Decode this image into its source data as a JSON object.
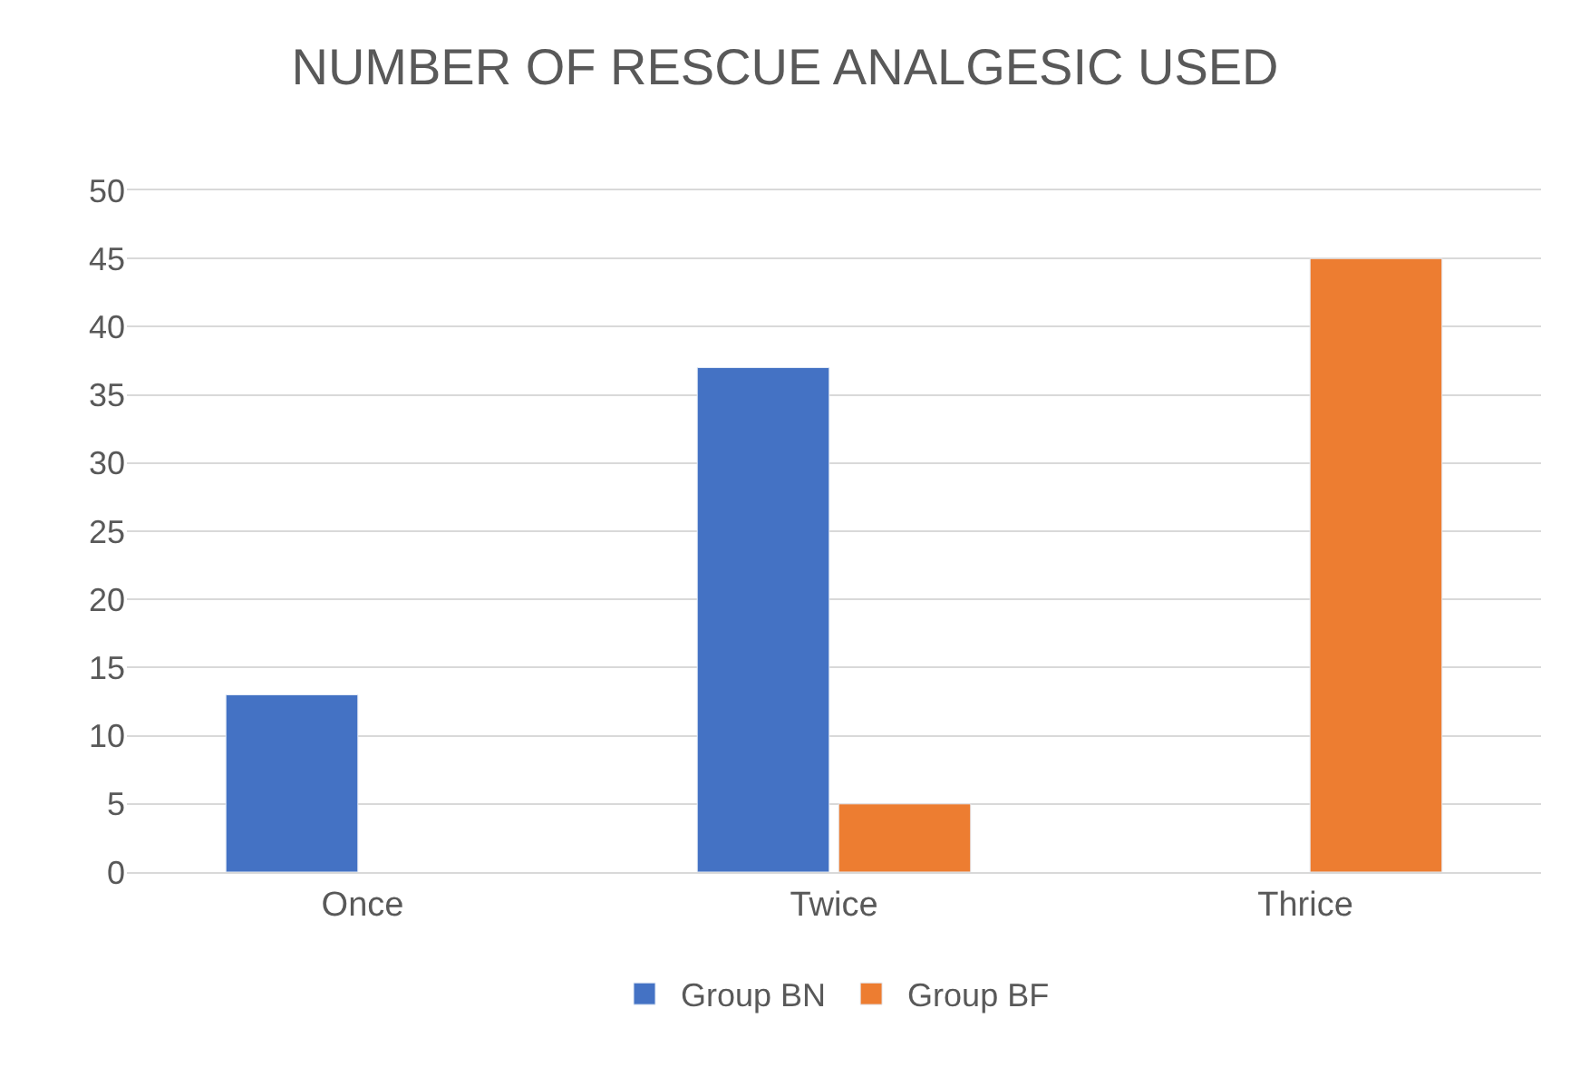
{
  "chart_data": {
    "type": "bar",
    "title": "NUMBER OF RESCUE ANALGESIC USED",
    "categories": [
      "Once",
      "Twice",
      "Thrice"
    ],
    "series": [
      {
        "name": "Group BN",
        "color": "#4472c4",
        "values": [
          13,
          37,
          null
        ]
      },
      {
        "name": "Group BF",
        "color": "#ed7d31",
        "values": [
          null,
          5,
          45
        ]
      }
    ],
    "ylim": [
      0,
      50
    ],
    "yticks": [
      0,
      5,
      10,
      15,
      20,
      25,
      30,
      35,
      40,
      45,
      50
    ],
    "grid": "y",
    "legend": "bottom"
  }
}
